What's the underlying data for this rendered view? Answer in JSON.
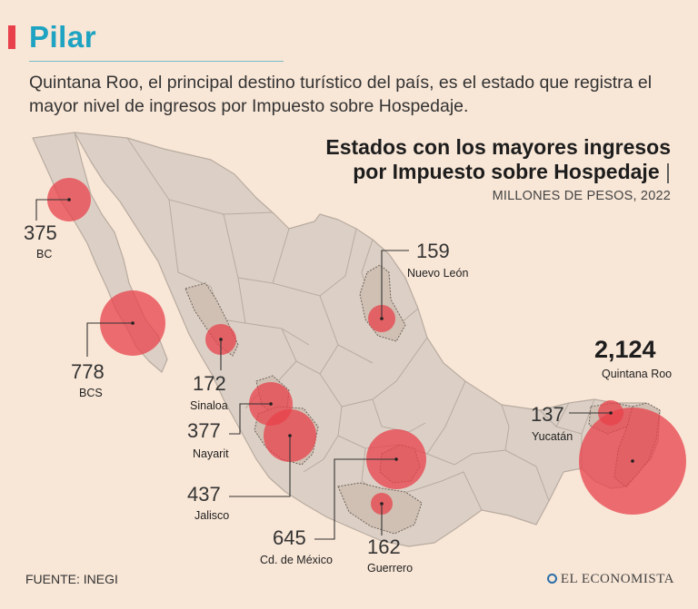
{
  "header": {
    "brand": "Pilar",
    "intro": "Quintana Roo, el principal destino turístico del país, es el estado que registra el mayor nivel de ingresos por Impuesto sobre Hospedaje."
  },
  "chart": {
    "title_line1": "Estados con los mayores ingresos",
    "title_line2": "por Impuesto sobre Hospedaje",
    "title_bar": "|",
    "subtitle": "MILLONES DE PESOS, 2022"
  },
  "states": [
    {
      "id": "bc",
      "value": "375",
      "name": "BC"
    },
    {
      "id": "bcs",
      "value": "778",
      "name": "BCS"
    },
    {
      "id": "sinaloa",
      "value": "172",
      "name": "Sinaloa"
    },
    {
      "id": "nayarit",
      "value": "377",
      "name": "Nayarit"
    },
    {
      "id": "jalisco",
      "value": "437",
      "name": "Jalisco"
    },
    {
      "id": "cdmx",
      "value": "645",
      "name": "Cd. de México"
    },
    {
      "id": "guerrero",
      "value": "162",
      "name": "Guerrero"
    },
    {
      "id": "nuevo-leon",
      "value": "159",
      "name": "Nuevo León"
    },
    {
      "id": "yucatan",
      "value": "137",
      "name": "Yucatán"
    },
    {
      "id": "quintana-roo",
      "value": "2,124",
      "name": "Quintana Roo"
    }
  ],
  "footer": {
    "source": "FUENTE: INEGI",
    "logo": "EL ECONOMISTA"
  },
  "colors": {
    "background": "#f8e6d6",
    "land": "#dcd0c6",
    "highlight": "#cfc0b3",
    "bubble": "#e8414b",
    "brand": "#1ea3c2"
  }
}
